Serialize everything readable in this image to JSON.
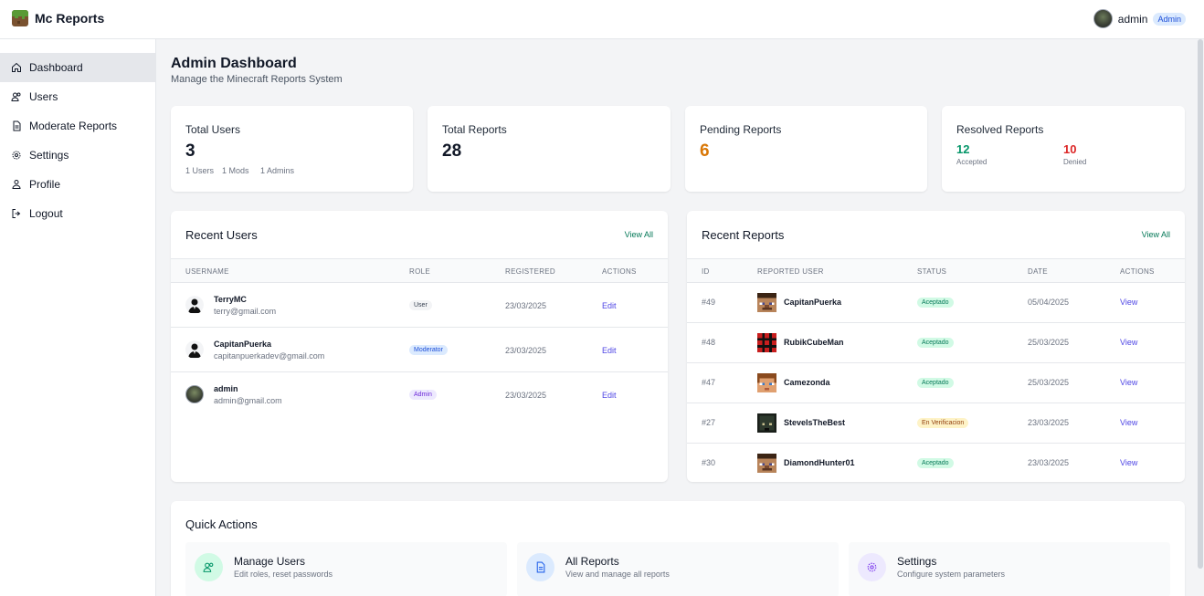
{
  "app": {
    "name": "Mc Reports"
  },
  "user": {
    "name": "admin",
    "badge": "Admin"
  },
  "sidebar": {
    "items": [
      {
        "label": "Dashboard",
        "icon": "home-icon"
      },
      {
        "label": "Users",
        "icon": "users-icon"
      },
      {
        "label": "Moderate Reports",
        "icon": "document-icon"
      },
      {
        "label": "Settings",
        "icon": "gear-icon"
      },
      {
        "label": "Profile",
        "icon": "user-icon"
      },
      {
        "label": "Logout",
        "icon": "logout-icon"
      }
    ]
  },
  "page": {
    "title": "Admin Dashboard",
    "subtitle": "Manage the Minecraft Reports System"
  },
  "stats": {
    "total_users": {
      "title": "Total Users",
      "value": "3",
      "users": "1 Users",
      "mods": "1 Mods",
      "admins": "1 Admins"
    },
    "total_reports": {
      "title": "Total Reports",
      "value": "28"
    },
    "pending_reports": {
      "title": "Pending Reports",
      "value": "6"
    },
    "resolved_reports": {
      "title": "Resolved Reports",
      "accepted_value": "12",
      "accepted_label": "Accepted",
      "denied_value": "10",
      "denied_label": "Denied"
    }
  },
  "recent_users": {
    "title": "Recent Users",
    "view_all": "View All",
    "headers": [
      "USERNAME",
      "ROLE",
      "REGISTERED",
      "ACTIONS"
    ],
    "rows": [
      {
        "username": "TerryMC",
        "email": "terry@gmail.com",
        "role": "User",
        "registered": "23/03/2025",
        "action": "Edit"
      },
      {
        "username": "CapitanPuerka",
        "email": "capitanpuerkadev@gmail.com",
        "role": "Moderator",
        "registered": "23/03/2025",
        "action": "Edit"
      },
      {
        "username": "admin",
        "email": "admin@gmail.com",
        "role": "Admin",
        "registered": "23/03/2025",
        "action": "Edit"
      }
    ]
  },
  "recent_reports": {
    "title": "Recent Reports",
    "view_all": "View All",
    "headers": [
      "ID",
      "REPORTED USER",
      "STATUS",
      "DATE",
      "ACTIONS"
    ],
    "rows": [
      {
        "id": "#49",
        "user": "CapitanPuerka",
        "status": "Aceptado",
        "date": "05/04/2025",
        "action": "View"
      },
      {
        "id": "#48",
        "user": "RubikCubeMan",
        "status": "Aceptado",
        "date": "25/03/2025",
        "action": "View"
      },
      {
        "id": "#47",
        "user": "Camezonda",
        "status": "Aceptado",
        "date": "25/03/2025",
        "action": "View"
      },
      {
        "id": "#27",
        "user": "SteveIsTheBest",
        "status": "En Verificacion",
        "date": "23/03/2025",
        "action": "View"
      },
      {
        "id": "#30",
        "user": "DiamondHunter01",
        "status": "Aceptado",
        "date": "23/03/2025",
        "action": "View"
      }
    ]
  },
  "quick_actions": {
    "title": "Quick Actions",
    "items": [
      {
        "title": "Manage Users",
        "subtitle": "Edit roles, reset passwords",
        "icon": "users-icon"
      },
      {
        "title": "All Reports",
        "subtitle": "View and manage all reports",
        "icon": "document-icon"
      },
      {
        "title": "Settings",
        "subtitle": "Configure system parameters",
        "icon": "gear-icon"
      }
    ]
  },
  "colors": {
    "pending": "#d97706",
    "accepted": "#059669",
    "denied": "#dc2626",
    "link": "#4f46e5",
    "view_all": "#047857"
  }
}
